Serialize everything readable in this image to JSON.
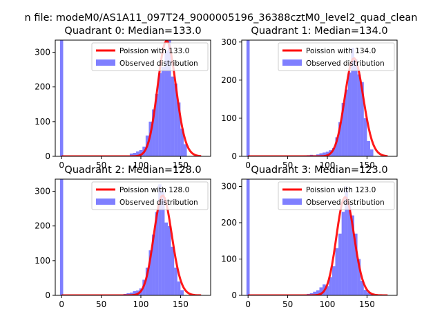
{
  "figure": {
    "suptitle": "n file: modeM0/AS1A11_097T24_9000005196_36388cztM0_level2_quad_clean"
  },
  "legend": {
    "observed_label": "Observed distribution",
    "poisson_prefix": "Poission with "
  },
  "colors": {
    "histogram": "#0000ff",
    "poisson": "#ff0000",
    "axes": "#000000"
  },
  "chart_data": [
    {
      "type": "bar",
      "title": "Quadrant 0: Median=133.0",
      "median": 133.0,
      "poisson_label": "Poission with 133.0",
      "xlim": [
        -8,
        188
      ],
      "ylim": [
        0,
        335
      ],
      "xticks": [
        0,
        50,
        100,
        150
      ],
      "yticks": [
        0,
        100,
        200,
        300
      ],
      "zero_spike": 335,
      "hist_x": [
        86,
        90,
        94,
        98,
        102,
        106,
        110,
        114,
        118,
        122,
        126,
        130,
        134,
        138,
        142,
        146,
        150,
        154
      ],
      "hist_y": [
        8,
        10,
        14,
        18,
        28,
        60,
        100,
        135,
        180,
        240,
        258,
        305,
        340,
        230,
        210,
        155,
        80,
        35
      ],
      "poisson_curve_x_max": 176,
      "legend": "top-right"
    },
    {
      "type": "bar",
      "title": "Quadrant 1: Median=134.0",
      "median": 134.0,
      "poisson_label": "Poission with 134.0",
      "xlim": [
        -8,
        188
      ],
      "ylim": [
        0,
        305
      ],
      "xticks": [
        0,
        50,
        100,
        150
      ],
      "yticks": [
        0,
        100,
        200,
        300
      ],
      "zero_spike": 305,
      "hist_x": [
        70,
        74,
        78,
        82,
        86,
        90,
        94,
        98,
        102,
        106,
        110,
        114,
        118,
        122,
        126,
        130,
        134,
        138,
        142,
        146,
        150,
        154
      ],
      "hist_y": [
        2,
        3,
        4,
        3,
        5,
        8,
        10,
        12,
        16,
        22,
        50,
        90,
        140,
        175,
        220,
        285,
        255,
        215,
        195,
        100,
        40,
        18
      ],
      "poisson_curve_x_max": 176,
      "legend": "top-right"
    },
    {
      "type": "bar",
      "title": "Quadrant 2: Median=128.0",
      "median": 128.0,
      "poisson_label": "Poission with 128.0",
      "xlim": [
        -8,
        188
      ],
      "ylim": [
        0,
        335
      ],
      "xticks": [
        0,
        50,
        100,
        150
      ],
      "yticks": [
        0,
        100,
        200,
        300
      ],
      "zero_spike": 335,
      "hist_x": [
        78,
        82,
        86,
        90,
        94,
        98,
        102,
        106,
        110,
        114,
        118,
        122,
        126,
        130,
        134,
        138,
        142,
        146,
        150
      ],
      "hist_y": [
        4,
        6,
        8,
        12,
        14,
        20,
        45,
        80,
        130,
        175,
        240,
        320,
        300,
        210,
        200,
        140,
        80,
        40,
        15
      ],
      "poisson_curve_x_max": 176,
      "legend": "top-right"
    },
    {
      "type": "bar",
      "title": "Quadrant 3: Median=123.0",
      "median": 123.0,
      "poisson_label": "Poission with 123.0",
      "xlim": [
        -8,
        188
      ],
      "ylim": [
        0,
        320
      ],
      "xticks": [
        0,
        50,
        100,
        150
      ],
      "yticks": [
        0,
        100,
        200,
        300
      ],
      "zero_spike": 320,
      "hist_x": [
        70,
        74,
        78,
        82,
        86,
        90,
        94,
        98,
        102,
        106,
        110,
        114,
        118,
        122,
        126,
        130,
        134,
        138,
        142,
        146,
        150,
        154
      ],
      "hist_y": [
        2,
        4,
        6,
        10,
        14,
        22,
        30,
        25,
        50,
        80,
        130,
        170,
        230,
        300,
        250,
        220,
        170,
        100,
        40,
        15,
        8,
        4
      ],
      "poisson_curve_x_max": 176,
      "legend": "top-right"
    }
  ]
}
